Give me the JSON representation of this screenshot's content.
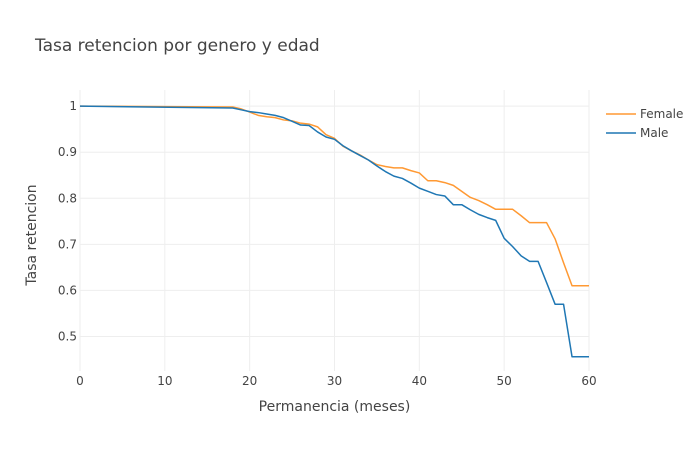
{
  "chart_data": {
    "type": "line",
    "title": "Tasa retencion por genero y edad",
    "xlabel": "Permanencia (meses)",
    "ylabel": "Tasa retencion",
    "xlim": [
      0,
      60
    ],
    "ylim": [
      0.425,
      1.035
    ],
    "xticks": [
      0,
      10,
      20,
      30,
      40,
      50,
      60
    ],
    "xtick_labels": [
      "0",
      "10",
      "20",
      "30",
      "40",
      "50",
      "60"
    ],
    "yticks": [
      0.5,
      0.6,
      0.7,
      0.8,
      0.9,
      1.0
    ],
    "ytick_labels": [
      "0.5",
      "0.6",
      "0.7",
      "0.8",
      "0.9",
      "1"
    ],
    "grid": true,
    "legend_position": "top-right",
    "series": [
      {
        "name": "Female",
        "color": "#ff9933",
        "x": [
          0,
          18,
          19,
          20,
          21,
          22,
          23,
          24,
          25,
          26,
          27,
          28,
          29,
          30,
          31,
          32,
          33,
          34,
          35,
          36,
          37,
          38,
          39,
          40,
          41,
          42,
          43,
          44,
          45,
          46,
          47,
          48,
          49,
          50,
          51,
          52,
          53,
          54,
          55,
          56,
          57,
          58,
          59,
          60
        ],
        "y": [
          1.0,
          0.998,
          0.994,
          0.987,
          0.98,
          0.977,
          0.975,
          0.97,
          0.968,
          0.963,
          0.961,
          0.955,
          0.938,
          0.93,
          0.913,
          0.903,
          0.894,
          0.883,
          0.873,
          0.869,
          0.866,
          0.866,
          0.86,
          0.855,
          0.838,
          0.838,
          0.834,
          0.828,
          0.815,
          0.802,
          0.795,
          0.786,
          0.776,
          0.776,
          0.776,
          0.762,
          0.747,
          0.747,
          0.747,
          0.712,
          0.66,
          0.61,
          0.61,
          0.61
        ]
      },
      {
        "name": "Male",
        "color": "#1f77b4",
        "x": [
          0,
          18,
          19,
          20,
          21,
          22,
          23,
          24,
          25,
          26,
          27,
          28,
          29,
          30,
          31,
          32,
          33,
          34,
          35,
          36,
          37,
          38,
          39,
          40,
          41,
          42,
          43,
          44,
          45,
          46,
          47,
          48,
          49,
          50,
          51,
          52,
          53,
          54,
          55,
          56,
          57,
          58,
          59,
          60
        ],
        "y": [
          1.0,
          0.996,
          0.992,
          0.988,
          0.986,
          0.983,
          0.98,
          0.975,
          0.967,
          0.959,
          0.958,
          0.944,
          0.933,
          0.928,
          0.914,
          0.903,
          0.893,
          0.883,
          0.87,
          0.858,
          0.848,
          0.843,
          0.833,
          0.822,
          0.815,
          0.808,
          0.805,
          0.786,
          0.786,
          0.775,
          0.765,
          0.758,
          0.752,
          0.713,
          0.695,
          0.675,
          0.663,
          0.663,
          0.617,
          0.57,
          0.57,
          0.456,
          0.456,
          0.456
        ]
      }
    ]
  }
}
